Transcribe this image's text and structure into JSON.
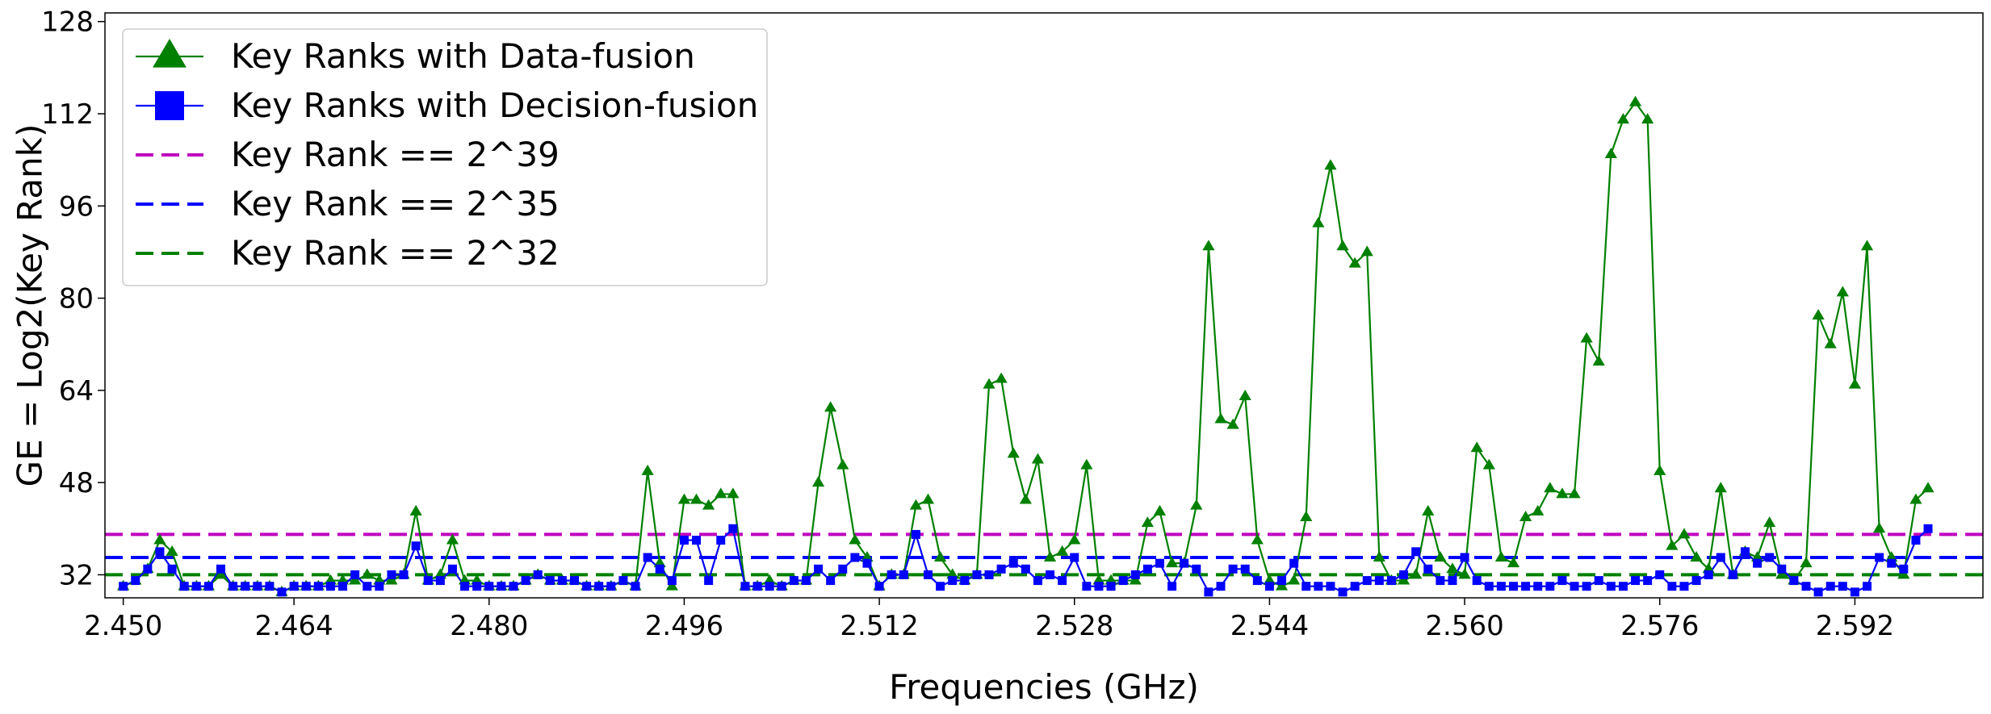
{
  "chart_data": {
    "type": "line",
    "xlabel": "Frequencies (GHz)",
    "ylabel": "GE = Log2(Key Rank)",
    "xlim": [
      2.4485,
      2.6025
    ],
    "ylim": [
      28,
      129.5
    ],
    "x_ticks": [
      "2.450",
      "2.464",
      "2.480",
      "2.496",
      "2.512",
      "2.528",
      "2.544",
      "2.560",
      "2.576",
      "2.592"
    ],
    "x_tick_values": [
      2.45,
      2.464,
      2.48,
      2.496,
      2.512,
      2.528,
      2.544,
      2.56,
      2.576,
      2.592
    ],
    "y_ticks": [
      32,
      48,
      64,
      80,
      96,
      112,
      128
    ],
    "legend_position": "top-left",
    "grid": false,
    "x_start": 2.45,
    "x_step": 0.001,
    "series": [
      {
        "name": "Key Ranks with Data-fusion",
        "color": "#008000",
        "marker": "triangle",
        "values": [
          30,
          31,
          33,
          38,
          36,
          30,
          30,
          30,
          32,
          30,
          30,
          30,
          30,
          29,
          30,
          30,
          30,
          31,
          31,
          31,
          32,
          31,
          31,
          32,
          43,
          31,
          32,
          38,
          31,
          31,
          30,
          30,
          30,
          31,
          32,
          31,
          31,
          31,
          30,
          30,
          30,
          31,
          30,
          50,
          34,
          30,
          45,
          45,
          44,
          46,
          46,
          30,
          30,
          31,
          30,
          31,
          31,
          48,
          61,
          51,
          38,
          35,
          30,
          32,
          32,
          44,
          45,
          35,
          32,
          31,
          32,
          65,
          66,
          53,
          45,
          52,
          35,
          36,
          38,
          51,
          31,
          31,
          31,
          31,
          41,
          43,
          34,
          34,
          44,
          89,
          59,
          58,
          63,
          38,
          31,
          30,
          31,
          42,
          93,
          103,
          89,
          86,
          88,
          35,
          31,
          31,
          32,
          43,
          35,
          33,
          32,
          54,
          51,
          35,
          34,
          42,
          43,
          47,
          46,
          46,
          73,
          69,
          105,
          111,
          114,
          111,
          50,
          37,
          39,
          35,
          33,
          47,
          32,
          36,
          35,
          41,
          32,
          31,
          34,
          77,
          72,
          81,
          65,
          89,
          40,
          35,
          32,
          45,
          47
        ]
      },
      {
        "name": "Key Ranks with Decision-fusion",
        "color": "#0000ff",
        "marker": "square",
        "values": [
          30,
          31,
          33,
          36,
          33,
          30,
          30,
          30,
          33,
          30,
          30,
          30,
          30,
          29,
          30,
          30,
          30,
          30,
          30,
          32,
          30,
          30,
          32,
          32,
          37,
          31,
          31,
          33,
          30,
          30,
          30,
          30,
          30,
          31,
          32,
          31,
          31,
          31,
          30,
          30,
          30,
          31,
          30,
          35,
          33,
          31,
          38,
          38,
          31,
          38,
          40,
          30,
          30,
          30,
          30,
          31,
          31,
          33,
          31,
          33,
          35,
          34,
          30,
          32,
          32,
          39,
          32,
          30,
          31,
          31,
          32,
          32,
          33,
          34,
          33,
          31,
          32,
          31,
          35,
          30,
          30,
          30,
          31,
          32,
          33,
          34,
          30,
          34,
          33,
          29,
          30,
          33,
          33,
          31,
          30,
          31,
          34,
          30,
          30,
          30,
          29,
          30,
          31,
          31,
          31,
          32,
          36,
          33,
          31,
          31,
          35,
          31,
          30,
          30,
          30,
          30,
          30,
          30,
          31,
          30,
          30,
          31,
          30,
          30,
          31,
          31,
          32,
          30,
          30,
          31,
          32,
          35,
          32,
          36,
          34,
          35,
          33,
          31,
          30,
          29,
          30,
          30,
          29,
          30,
          35,
          34,
          33,
          38,
          40
        ]
      },
      {
        "name": "Key Rank == 2^39",
        "color": "#bf00bf",
        "style": "dashed",
        "y": 39
      },
      {
        "name": "Key Rank == 2^35",
        "color": "#0000ff",
        "style": "dashed",
        "y": 35
      },
      {
        "name": "Key Rank == 2^32",
        "color": "#008000",
        "style": "dashed",
        "y": 32
      }
    ]
  }
}
